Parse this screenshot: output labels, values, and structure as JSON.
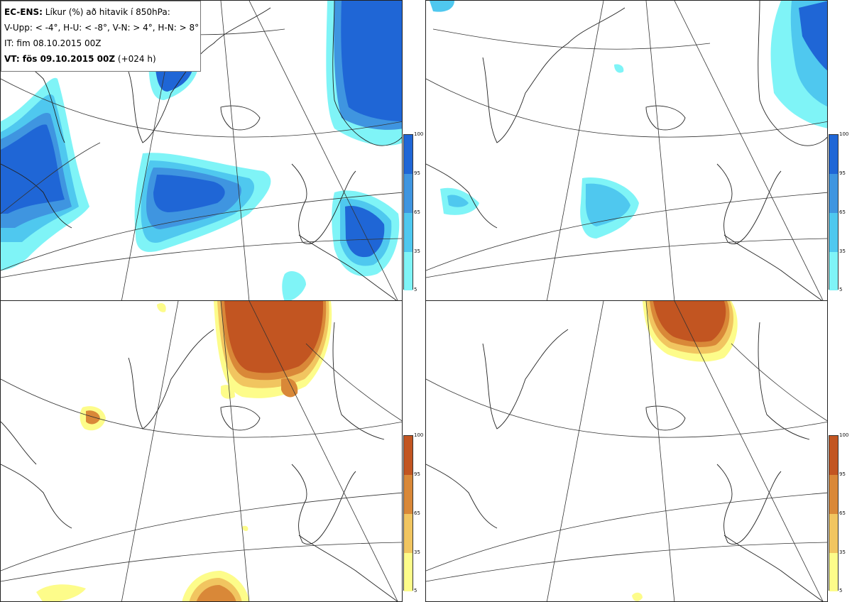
{
  "info": {
    "line1_bold": "EC-ENS:",
    "line1_rest": " Líkur (%) að hitavik í 850hPa:",
    "line2": "V-Upp: < -4°, H-U: < -8°, V-N: > 4°, H-N: > 8°",
    "line3": "IT: fim 08.10.2015 00Z",
    "line4_bold": "VT: fös 09.10.2015 00Z",
    "line4_rest": " (+024 h)"
  },
  "colorbar_levels": [
    "100",
    "95",
    "65",
    "35",
    "5"
  ],
  "colors": {
    "cold": [
      "#7ff4f7",
      "#4fc8ef",
      "#3f95e0",
      "#1f66d6"
    ],
    "warm": [
      "#fdfc8a",
      "#f1c560",
      "#d98838",
      "#c25521"
    ],
    "land": "#ffffff",
    "coast": "#222222",
    "grid": "#333333"
  },
  "panels": [
    {
      "name": "V-Upp",
      "scheme": "cold"
    },
    {
      "name": "H-U",
      "scheme": "cold"
    },
    {
      "name": "V-N",
      "scheme": "warm"
    },
    {
      "name": "H-N",
      "scheme": "warm"
    }
  ]
}
